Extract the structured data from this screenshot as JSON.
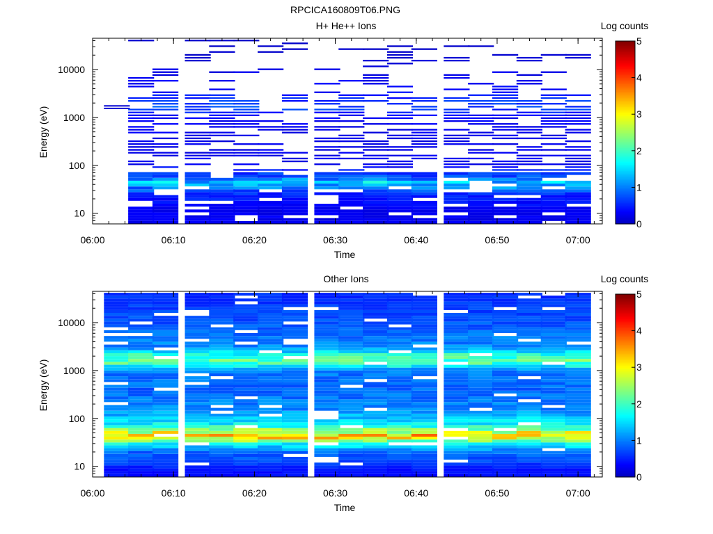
{
  "figure": {
    "title": "RPCICA160809T06.PNG"
  },
  "chart_data": [
    {
      "type": "heatmap",
      "title": "H+ He++ Ions",
      "xlabel": "Time",
      "ylabel": "Energy (eV)",
      "yscale": "log",
      "xlim": [
        "06:00",
        "07:03"
      ],
      "ylim": [
        6,
        45000
      ],
      "x_ticks": [
        "06:00",
        "06:10",
        "06:20",
        "06:30",
        "06:40",
        "06:50",
        "07:00"
      ],
      "y_ticks": [
        "10",
        "100",
        "1000",
        "10000"
      ],
      "colorbar": {
        "label": "Log counts",
        "range": [
          0,
          5
        ],
        "ticks": [
          "0",
          "1",
          "2",
          "3",
          "4",
          "5"
        ]
      },
      "time_bins": [
        "06:03",
        "06:06",
        "06:09",
        "06:13",
        "06:16",
        "06:19",
        "06:22",
        "06:25",
        "06:29",
        "06:32",
        "06:35",
        "06:38",
        "06:41",
        "06:45",
        "06:48",
        "06:51",
        "06:54",
        "06:57",
        "07:00"
      ],
      "energy_profile_description_levels": [
        {
          "energy_eV": 12,
          "value": 0.3
        },
        {
          "energy_eV": 18,
          "value": 0.5
        },
        {
          "energy_eV": 25,
          "value": 0.6
        },
        {
          "energy_eV": 35,
          "value": 1.2
        },
        {
          "energy_eV": 45,
          "value": 1.6
        },
        {
          "energy_eV": 55,
          "value": 0.9
        },
        {
          "energy_eV": 100,
          "value": 0.3
        },
        {
          "energy_eV": 300,
          "value": 0.25
        },
        {
          "energy_eV": 1000,
          "value": 0.35
        },
        {
          "energy_eV": 1600,
          "value": 0.8
        },
        {
          "energy_eV": 3500,
          "value": 0.4
        },
        {
          "energy_eV": 20000,
          "value": 0.1
        }
      ]
    },
    {
      "type": "heatmap",
      "title": "Other Ions",
      "xlabel": "Time",
      "ylabel": "Energy (eV)",
      "yscale": "log",
      "xlim": [
        "06:00",
        "07:03"
      ],
      "ylim": [
        6,
        45000
      ],
      "x_ticks": [
        "06:00",
        "06:10",
        "06:20",
        "06:30",
        "06:40",
        "06:50",
        "07:00"
      ],
      "y_ticks": [
        "10",
        "100",
        "1000",
        "10000"
      ],
      "colorbar": {
        "label": "Log counts",
        "range": [
          0,
          5
        ],
        "ticks": [
          "0",
          "1",
          "2",
          "3",
          "4",
          "5"
        ]
      },
      "time_bins": [
        "06:03",
        "06:06",
        "06:09",
        "06:13",
        "06:16",
        "06:19",
        "06:22",
        "06:25",
        "06:29",
        "06:32",
        "06:35",
        "06:38",
        "06:41",
        "06:45",
        "06:48",
        "06:51",
        "06:54",
        "06:57",
        "07:00"
      ],
      "energy_profile_description_levels": [
        {
          "energy_eV": 8,
          "value": 0.4
        },
        {
          "energy_eV": 12,
          "value": 0.7
        },
        {
          "energy_eV": 20,
          "value": 0.9
        },
        {
          "energy_eV": 30,
          "value": 1.8
        },
        {
          "energy_eV": 38,
          "value": 3.0
        },
        {
          "energy_eV": 45,
          "value": 3.3
        },
        {
          "energy_eV": 55,
          "value": 2.6
        },
        {
          "energy_eV": 70,
          "value": 1.8
        },
        {
          "energy_eV": 150,
          "value": 1.1
        },
        {
          "energy_eV": 400,
          "value": 0.9
        },
        {
          "energy_eV": 1000,
          "value": 1.0
        },
        {
          "energy_eV": 1500,
          "value": 2.2
        },
        {
          "energy_eV": 2000,
          "value": 2.0
        },
        {
          "energy_eV": 3000,
          "value": 1.1
        },
        {
          "energy_eV": 10000,
          "value": 0.8
        },
        {
          "energy_eV": 35000,
          "value": 0.6
        }
      ]
    }
  ]
}
